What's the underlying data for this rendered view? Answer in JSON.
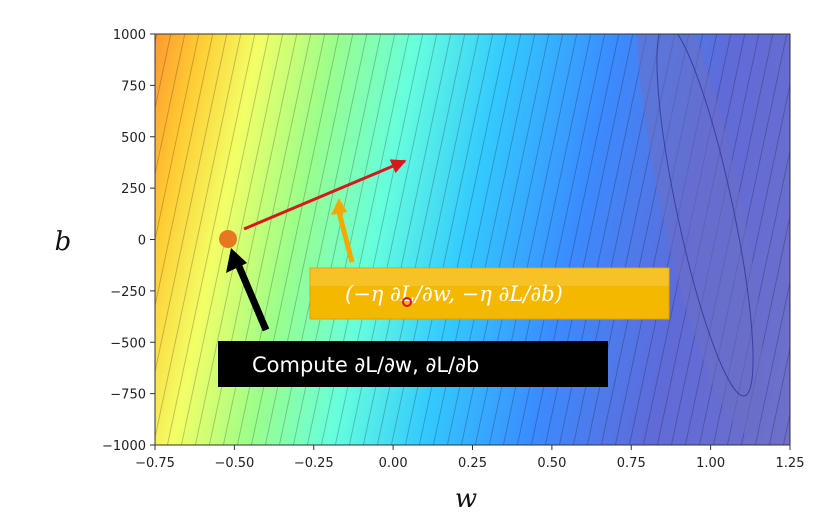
{
  "chart_data": {
    "type": "contour",
    "xlabel": "w",
    "ylabel": "b",
    "xlim": [
      -0.75,
      1.25
    ],
    "ylim": [
      -1000,
      1000
    ],
    "x_ticks": [
      "−0.75",
      "−0.50",
      "−0.25",
      "0.00",
      "0.25",
      "0.50",
      "0.75",
      "1.00",
      "1.25"
    ],
    "y_ticks": [
      "1000",
      "750",
      "500",
      "250",
      "0",
      "−250",
      "−500",
      "−750",
      "−1000"
    ],
    "colormap": "jet",
    "current_point": {
      "w": -0.52,
      "b": 5
    },
    "step_vector_end": {
      "w": 0.05,
      "b": 380
    },
    "minimum_point": {
      "w": 1.06,
      "b": -130
    },
    "annotations": {
      "gradient_box": "(−η ∂L/∂w, −η ∂L/∂b)",
      "compute_box": "Compute ∂L/∂w, ∂L/∂b"
    }
  },
  "colors": {
    "step_arrow": "#d7191c",
    "gradient_box_bg": "#f5b800",
    "gradient_arrow": "#f5a800",
    "compute_box_bg": "#000000",
    "compute_arrow": "#000000",
    "point": "#e87722"
  }
}
